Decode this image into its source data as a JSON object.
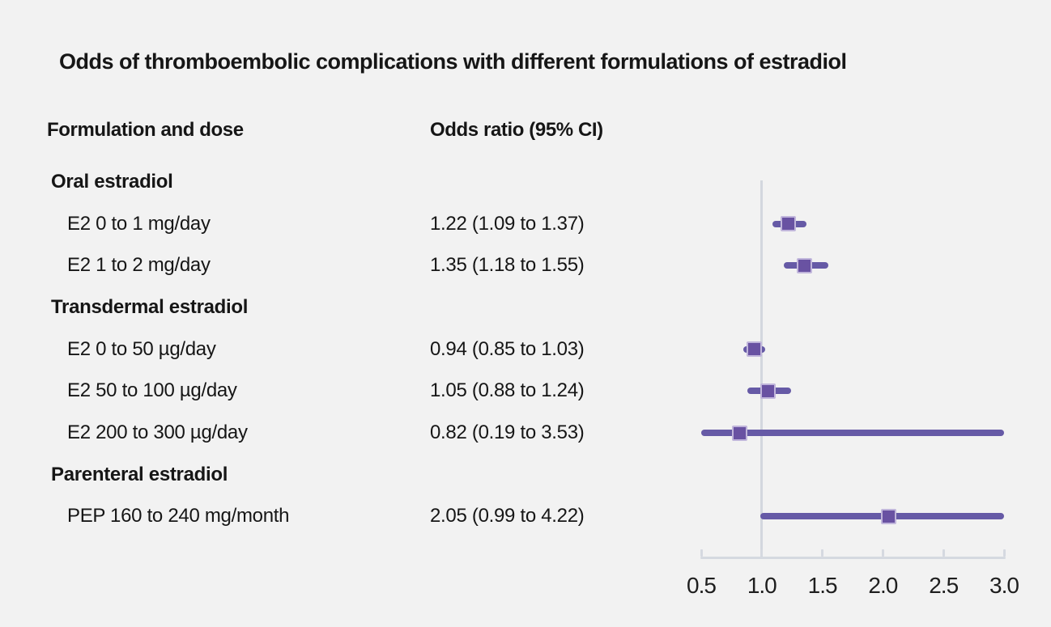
{
  "page": {
    "background": "#f2f2f2"
  },
  "title": "Odds of thromboembolic complications with different formulations of estradiol",
  "columns": {
    "formulation": "Formulation and dose",
    "odds_ratio": "Odds ratio (95% CI)"
  },
  "chart_data": {
    "type": "forest",
    "title": "Odds of thromboembolic complications with different formulations of estradiol",
    "xlim": [
      0.5,
      3.0
    ],
    "reference_line": 1.0,
    "grid": false,
    "ticks": [
      {
        "value": 0.5,
        "label": "0.5"
      },
      {
        "value": 1.0,
        "label": "1.0"
      },
      {
        "value": 1.5,
        "label": "1.5"
      },
      {
        "value": 2.0,
        "label": "2.0"
      },
      {
        "value": 2.5,
        "label": "2.5"
      },
      {
        "value": 3.0,
        "label": "3.0"
      }
    ],
    "rows": [
      {
        "kind": "group",
        "label": "Oral estradiol"
      },
      {
        "kind": "item",
        "label": "E2 0 to 1 mg/day",
        "or_text": "1.22 (1.09 to 1.37)",
        "or": 1.22,
        "lo": 1.09,
        "hi": 1.37
      },
      {
        "kind": "item",
        "label": "E2 1 to 2 mg/day",
        "or_text": "1.35 (1.18 to 1.55)",
        "or": 1.35,
        "lo": 1.18,
        "hi": 1.55
      },
      {
        "kind": "group",
        "label": "Transdermal estradiol"
      },
      {
        "kind": "item",
        "label": "E2 0 to 50 µg/day",
        "or_text": "0.94 (0.85 to 1.03)",
        "or": 0.94,
        "lo": 0.85,
        "hi": 1.03
      },
      {
        "kind": "item",
        "label": "E2 50 to 100 µg/day",
        "or_text": "1.05 (0.88 to 1.24)",
        "or": 1.05,
        "lo": 0.88,
        "hi": 1.24
      },
      {
        "kind": "item",
        "label": "E2 200 to 300 µg/day",
        "or_text": "0.82 (0.19 to 3.53)",
        "or": 0.82,
        "lo": 0.19,
        "hi": 3.53
      },
      {
        "kind": "group",
        "label": "Parenteral estradiol"
      },
      {
        "kind": "item",
        "label": "PEP 160 to 240 mg/month",
        "or_text": "2.05 (0.99 to 4.22)",
        "or": 2.05,
        "lo": 0.99,
        "hi": 4.22
      }
    ],
    "colors": {
      "ci_line": "#665aa6",
      "marker_fill": "#6952a2",
      "marker_border": "#c0b5db",
      "axis": "#d5d9e0",
      "reference_line": "#d3d7de",
      "text": "#161616",
      "background": "#f2f2f2"
    }
  }
}
